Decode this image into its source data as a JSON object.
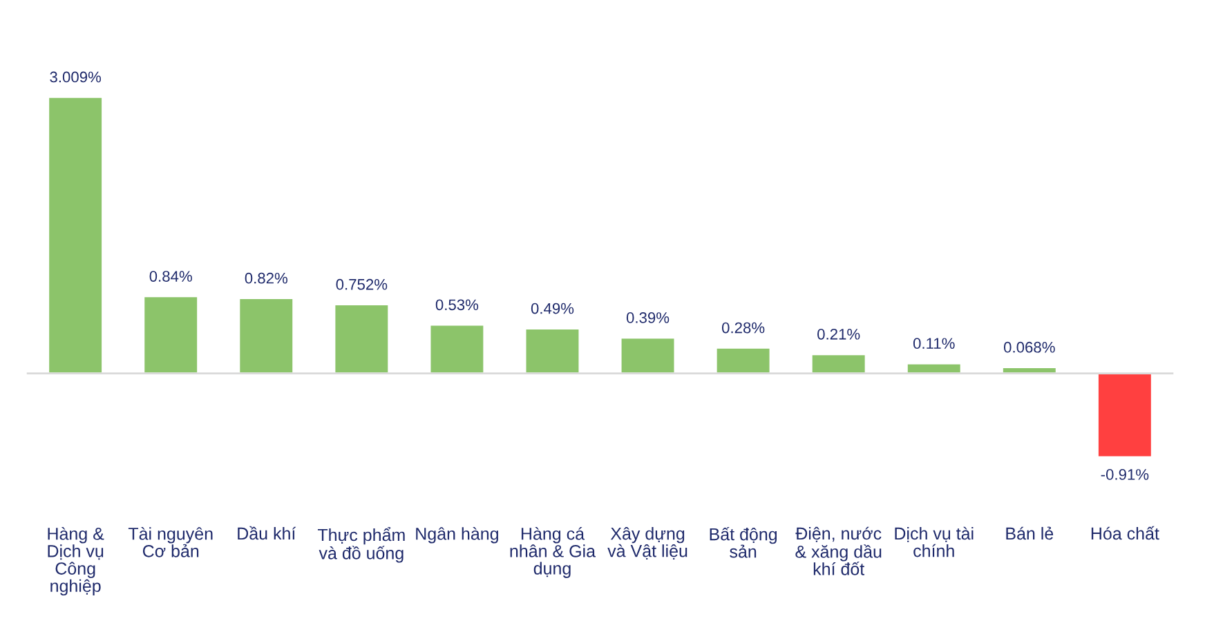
{
  "chart_data": {
    "type": "bar",
    "categories": [
      "Hàng & Dịch vụ Công nghiệp",
      "Tài nguyên Cơ bản",
      "Dầu khí",
      "Thực phẩm và đồ uống",
      "Ngân hàng",
      "Hàng cá nhân & Gia dụng",
      "Xây dựng và Vật liệu",
      "Bất động sản",
      "Điện, nước & xăng dầu khí đốt",
      "Dịch vụ tài chính",
      "Bán lẻ",
      "Hóa chất"
    ],
    "values": [
      3.009,
      0.84,
      0.82,
      0.752,
      0.53,
      0.49,
      0.39,
      0.28,
      0.21,
      0.11,
      0.068,
      -0.91
    ],
    "colors": [
      "#8cc46a",
      "#8cc46a",
      "#8cc46a",
      "#8cc46a",
      "#8cc46a",
      "#8cc46a",
      "#8cc46a",
      "#8cc46a",
      "#8cc46a",
      "#8cc46a",
      "#8cc46a",
      "#ff4040"
    ],
    "value_labels": [
      "3.009%",
      "0.84%",
      "0.82%",
      "0.752%",
      "0.53%",
      "0.49%",
      "0.39%",
      "0.28%",
      "0.21%",
      "0.11%",
      "0.068%",
      "-0.91%"
    ]
  }
}
